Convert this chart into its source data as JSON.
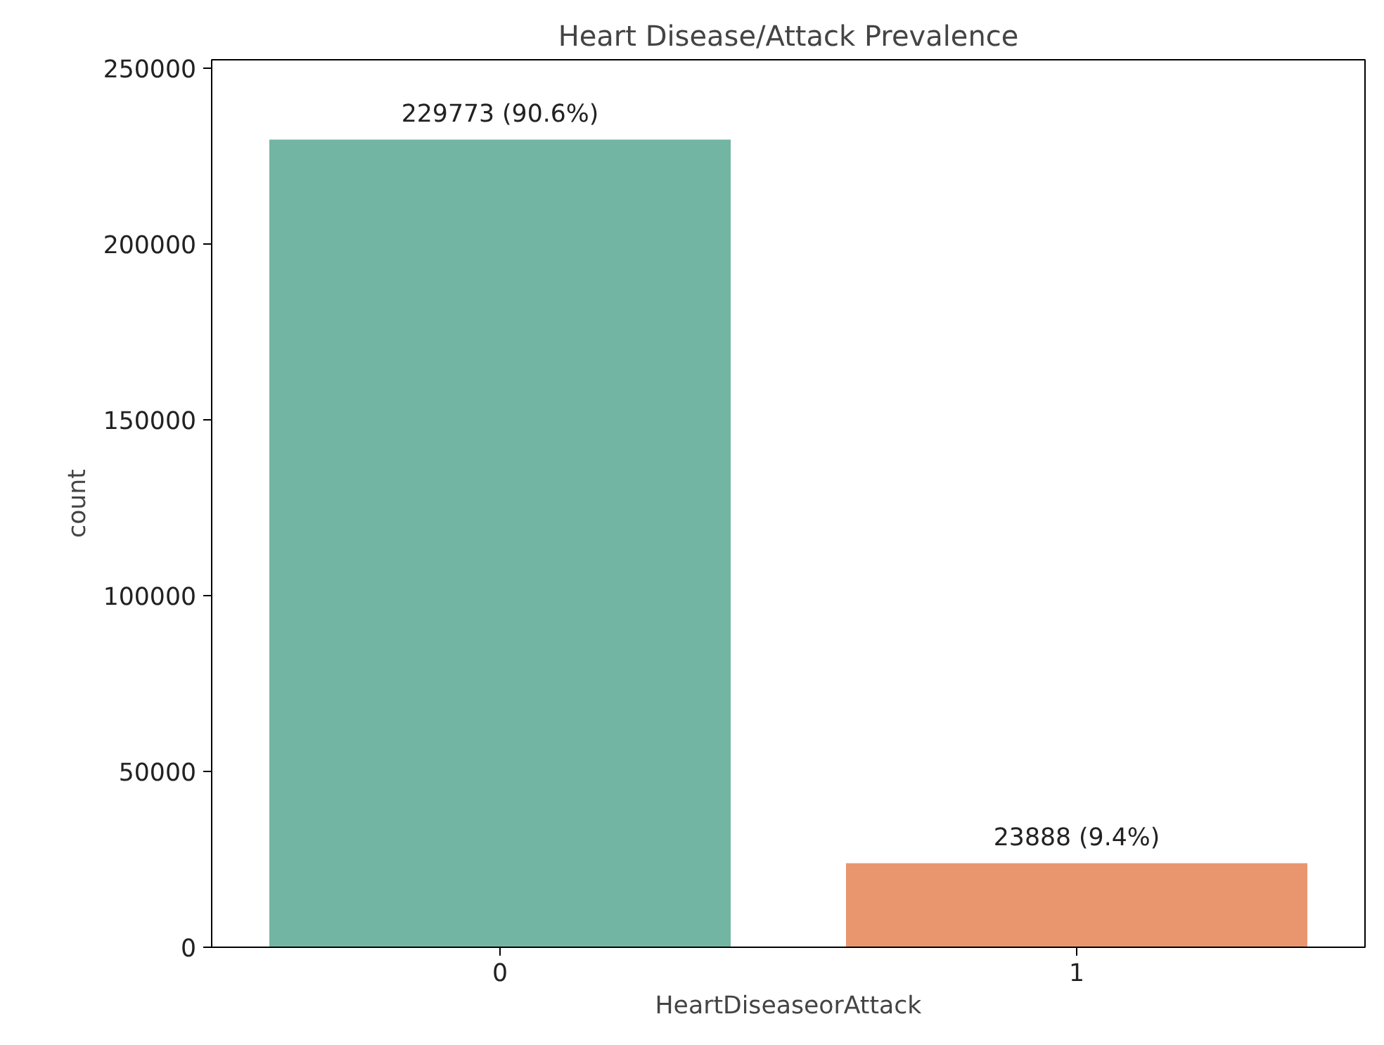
{
  "chart_data": {
    "type": "bar",
    "title": "Heart Disease/Attack Prevalence",
    "xlabel": "HeartDiseaseorAttack",
    "ylabel": "count",
    "categories": [
      "0",
      "1"
    ],
    "values": [
      229773,
      23888
    ],
    "colors": [
      "#72b5a2",
      "#e9966f"
    ],
    "value_labels": [
      "229773 (90.6%)",
      "23888 (9.4%)"
    ],
    "ylim": [
      0,
      252500
    ],
    "yticks": [
      0,
      50000,
      100000,
      150000,
      200000,
      250000
    ],
    "grid": false
  }
}
